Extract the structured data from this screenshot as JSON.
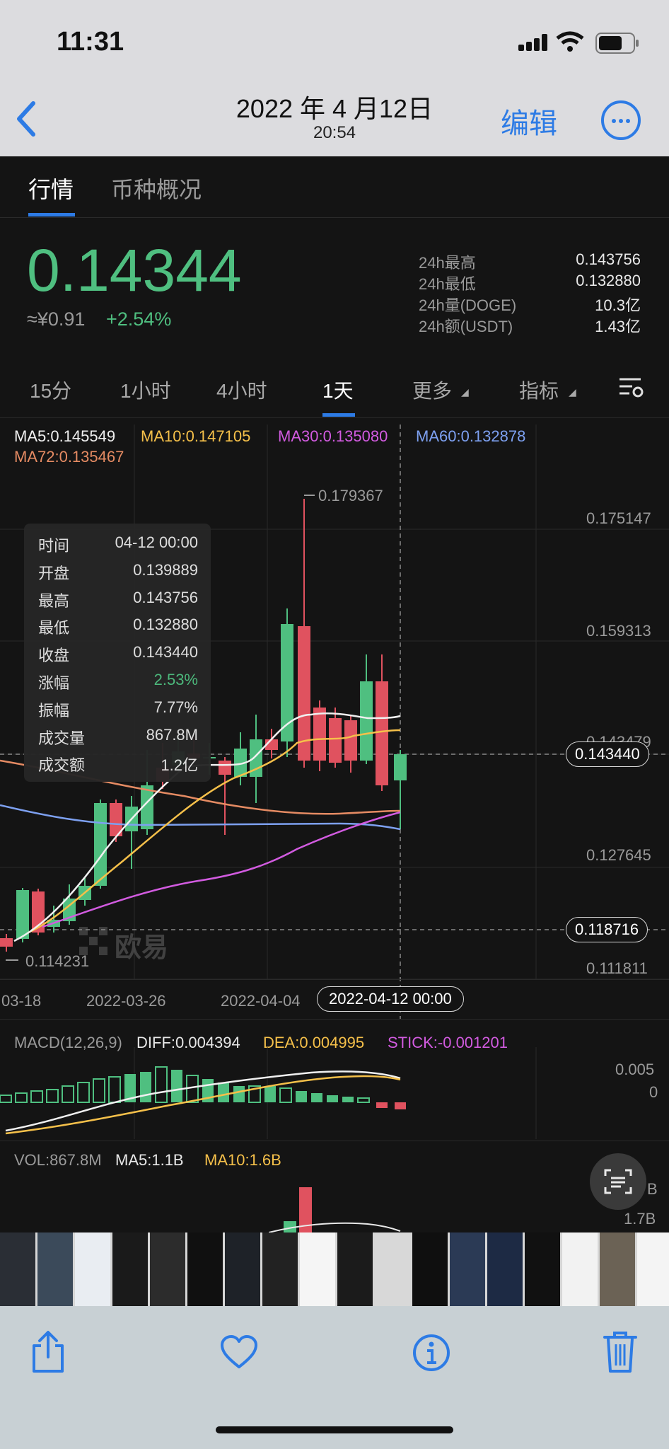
{
  "status_bar": {
    "time": "11:31"
  },
  "photo_header": {
    "date": "2022 年 4 月12日",
    "time": "20:54",
    "edit": "编辑"
  },
  "tabs": [
    {
      "label": "行情",
      "active": true
    },
    {
      "label": "币种概况",
      "active": false
    }
  ],
  "price": {
    "last": "0.14344",
    "cny": "≈¥0.91",
    "change": "+2.54%"
  },
  "stats": [
    {
      "label": "24h最高",
      "value": "0.143756"
    },
    {
      "label": "24h最低",
      "value": "0.132880"
    },
    {
      "label": "24h量(DOGE)",
      "value": "10.3亿"
    },
    {
      "label": "24h额(USDT)",
      "value": "1.43亿"
    }
  ],
  "timeframes": [
    "15分",
    "1小时",
    "4小时",
    "1天",
    "更多",
    "指标"
  ],
  "active_timeframe": "1天",
  "ma_legend": {
    "ma5": "MA5:0.145549",
    "ma10": "MA10:0.147105",
    "ma30": "MA30:0.135080",
    "ma60": "MA60:0.132878",
    "ma72": "MA72:0.135467"
  },
  "price_axis": {
    "p1": "0.175147",
    "p2": "0.159313",
    "p3": "0.143479",
    "current": "0.143440",
    "p4": "0.127645",
    "crosshair": "0.118716",
    "p5": "0.111811",
    "high_mark": "0.179367",
    "low_mark": "0.114231"
  },
  "tooltip": [
    {
      "label": "时间",
      "value": "04-12 00:00"
    },
    {
      "label": "开盘",
      "value": "0.139889"
    },
    {
      "label": "最高",
      "value": "0.143756"
    },
    {
      "label": "最低",
      "value": "0.132880"
    },
    {
      "label": "收盘",
      "value": "0.143440"
    },
    {
      "label": "涨幅",
      "value": "2.53%"
    },
    {
      "label": "振幅",
      "value": "7.77%"
    },
    {
      "label": "成交量",
      "value": "867.8M"
    },
    {
      "label": "成交额",
      "value": "1.2亿"
    }
  ],
  "watermark": "欧易",
  "date_axis": {
    "d1": "03-18",
    "d2": "2022-03-26",
    "d3": "2022-04-04",
    "selected": "2022-04-12 00:00"
  },
  "macd": {
    "title": "MACD(12,26,9)",
    "diff": "DIFF:0.004394",
    "dea": "DEA:0.004995",
    "stick": "STICK:-0.001201",
    "axis_hi": "0.005",
    "axis_zero": "0"
  },
  "vol": {
    "title": "VOL:867.8M",
    "ma5": "MA5:1.1B",
    "ma10": "MA10:1.6B",
    "axis_b": "B",
    "axis": "1.7B"
  },
  "colors": {
    "up": "#4fbf80",
    "down": "#e0525f",
    "ma5": "#f0f0f0",
    "ma10": "#f5c04a",
    "ma30": "#d25be0",
    "ma60": "#7da0f0",
    "ma72": "#e58b63",
    "accent": "#2d7be5"
  }
}
